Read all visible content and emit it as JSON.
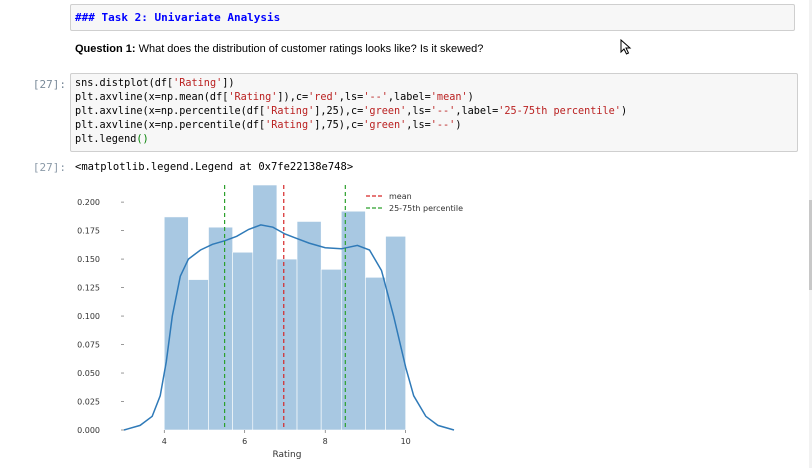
{
  "markdown_cell": {
    "heading": "### Task 2: Univariate Analysis"
  },
  "question": {
    "label": "Question 1:",
    "text": " What does the distribution of customer ratings looks like? Is it skewed?"
  },
  "code_cell": {
    "input_prompt": "[27]:",
    "output_prompt": "[27]:",
    "lines": [
      [
        {
          "t": "sns.distplot(df[",
          "c": "cv"
        },
        {
          "t": "'Rating'",
          "c": "cs"
        },
        {
          "t": "])",
          "c": "cv"
        }
      ],
      [
        {
          "t": "plt.axvline(x=np.mean(df[",
          "c": "cv"
        },
        {
          "t": "'Rating'",
          "c": "cs"
        },
        {
          "t": "]),c=",
          "c": "cv"
        },
        {
          "t": "'red'",
          "c": "cs"
        },
        {
          "t": ",ls=",
          "c": "cv"
        },
        {
          "t": "'--'",
          "c": "cs"
        },
        {
          "t": ",label=",
          "c": "cv"
        },
        {
          "t": "'mean'",
          "c": "cs"
        },
        {
          "t": ")",
          "c": "cv"
        }
      ],
      [
        {
          "t": "plt.axvline(x=np.percentile(df[",
          "c": "cv"
        },
        {
          "t": "'Rating'",
          "c": "cs"
        },
        {
          "t": "],25),c=",
          "c": "cv"
        },
        {
          "t": "'green'",
          "c": "cs"
        },
        {
          "t": ",ls=",
          "c": "cv"
        },
        {
          "t": "'--'",
          "c": "cs"
        },
        {
          "t": ",label=",
          "c": "cv"
        },
        {
          "t": "'25-75th percentile'",
          "c": "cs"
        },
        {
          "t": ")",
          "c": "cv"
        }
      ],
      [
        {
          "t": "plt.axvline(x=np.percentile(df[",
          "c": "cv"
        },
        {
          "t": "'Rating'",
          "c": "cs"
        },
        {
          "t": "],75),c=",
          "c": "cv"
        },
        {
          "t": "'green'",
          "c": "cs"
        },
        {
          "t": ",ls=",
          "c": "cv"
        },
        {
          "t": "'--'",
          "c": "cs"
        },
        {
          "t": ")",
          "c": "cv"
        }
      ],
      [
        {
          "t": "plt.legend",
          "c": "cv"
        },
        {
          "t": "()",
          "c": "ck"
        }
      ]
    ],
    "output_text": "<matplotlib.legend.Legend at 0x7fe22138e748>"
  },
  "chart_data": {
    "type": "bar",
    "xlabel": "Rating",
    "ylabel": "",
    "xlim": [
      3.0,
      11.3
    ],
    "ylim": [
      0,
      0.215
    ],
    "x_ticks": [
      4,
      6,
      8,
      10
    ],
    "y_ticks": [
      "0.000",
      "0.025",
      "0.050",
      "0.075",
      "0.100",
      "0.125",
      "0.150",
      "0.175",
      "0.200"
    ],
    "bar_color": "#a8c8e2",
    "kde_color": "#2f7ab8",
    "bins": [
      {
        "x0": 4.0,
        "x1": 4.6,
        "value": 0.187
      },
      {
        "x0": 4.6,
        "x1": 5.1,
        "value": 0.132
      },
      {
        "x0": 5.1,
        "x1": 5.7,
        "value": 0.178
      },
      {
        "x0": 5.7,
        "x1": 6.2,
        "value": 0.156
      },
      {
        "x0": 6.2,
        "x1": 6.8,
        "value": 0.215
      },
      {
        "x0": 6.8,
        "x1": 7.3,
        "value": 0.15
      },
      {
        "x0": 7.3,
        "x1": 7.9,
        "value": 0.183
      },
      {
        "x0": 7.9,
        "x1": 8.4,
        "value": 0.141
      },
      {
        "x0": 8.4,
        "x1": 9.0,
        "value": 0.192
      },
      {
        "x0": 9.0,
        "x1": 9.5,
        "value": 0.134
      },
      {
        "x0": 9.5,
        "x1": 10.0,
        "value": 0.17
      }
    ],
    "kde": [
      [
        3.0,
        0.0
      ],
      [
        3.4,
        0.004
      ],
      [
        3.7,
        0.012
      ],
      [
        3.9,
        0.03
      ],
      [
        4.05,
        0.06
      ],
      [
        4.2,
        0.1
      ],
      [
        4.4,
        0.135
      ],
      [
        4.6,
        0.15
      ],
      [
        4.9,
        0.158
      ],
      [
        5.2,
        0.163
      ],
      [
        5.5,
        0.166
      ],
      [
        5.8,
        0.17
      ],
      [
        6.1,
        0.176
      ],
      [
        6.4,
        0.18
      ],
      [
        6.7,
        0.178
      ],
      [
        7.0,
        0.172
      ],
      [
        7.3,
        0.168
      ],
      [
        7.6,
        0.164
      ],
      [
        8.0,
        0.16
      ],
      [
        8.4,
        0.159
      ],
      [
        8.8,
        0.162
      ],
      [
        9.1,
        0.158
      ],
      [
        9.4,
        0.14
      ],
      [
        9.7,
        0.1
      ],
      [
        10.0,
        0.055
      ],
      [
        10.2,
        0.03
      ],
      [
        10.5,
        0.012
      ],
      [
        10.8,
        0.004
      ],
      [
        11.2,
        0.0
      ]
    ],
    "vlines": [
      {
        "x": 6.97,
        "color": "#d62728",
        "style": "dashed",
        "label": "mean"
      },
      {
        "x": 5.5,
        "color": "#2ca02c",
        "style": "dashed",
        "label": "25-75th percentile"
      },
      {
        "x": 8.5,
        "color": "#2ca02c",
        "style": "dashed",
        "label": ""
      }
    ],
    "legend": {
      "placement": "top-right",
      "entries": [
        {
          "label": "mean",
          "color": "#d62728"
        },
        {
          "label": "25-75th percentile",
          "color": "#2ca02c"
        }
      ]
    }
  }
}
